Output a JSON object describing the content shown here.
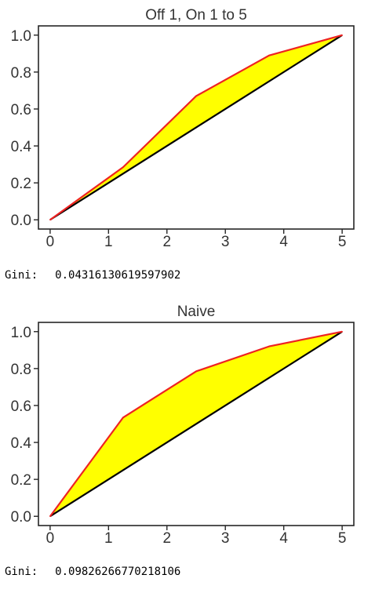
{
  "chart_data": [
    {
      "type": "area",
      "title": "Off 1, On 1 to 5",
      "xlabel": "",
      "ylabel": "",
      "xlim": [
        -0.2,
        5.2
      ],
      "ylim": [
        -0.05,
        1.05
      ],
      "xticks": [
        0,
        1,
        2,
        3,
        4,
        5
      ],
      "xtick_labels": [
        "0",
        "1",
        "2",
        "3",
        "4",
        "5"
      ],
      "yticks": [
        0.0,
        0.2,
        0.4,
        0.6,
        0.8,
        1.0
      ],
      "ytick_labels": [
        "0.0",
        "0.2",
        "0.4",
        "0.6",
        "0.8",
        "1.0"
      ],
      "grid": false,
      "series": [
        {
          "role": "lorenz",
          "x": [
            0,
            1.25,
            2.5,
            3.75,
            5
          ],
          "values": [
            0,
            0.285,
            0.67,
            0.89,
            1.0
          ]
        },
        {
          "role": "equality",
          "x": [
            0,
            5
          ],
          "values": [
            0,
            1.0
          ]
        }
      ],
      "colors": {
        "lorenz": "#ee2222",
        "equality": "#000000",
        "fill": "#ffff00"
      },
      "gini_label": "Gini:",
      "gini_value": "0.04316130619597902"
    },
    {
      "type": "area",
      "title": "Naive",
      "xlabel": "",
      "ylabel": "",
      "xlim": [
        -0.2,
        5.2
      ],
      "ylim": [
        -0.05,
        1.05
      ],
      "xticks": [
        0,
        1,
        2,
        3,
        4,
        5
      ],
      "xtick_labels": [
        "0",
        "1",
        "2",
        "3",
        "4",
        "5"
      ],
      "yticks": [
        0.0,
        0.2,
        0.4,
        0.6,
        0.8,
        1.0
      ],
      "ytick_labels": [
        "0.0",
        "0.2",
        "0.4",
        "0.6",
        "0.8",
        "1.0"
      ],
      "grid": false,
      "series": [
        {
          "role": "lorenz",
          "x": [
            0,
            1.25,
            2.5,
            3.75,
            5
          ],
          "values": [
            0,
            0.535,
            0.785,
            0.92,
            1.0
          ]
        },
        {
          "role": "equality",
          "x": [
            0,
            5
          ],
          "values": [
            0,
            1.0
          ]
        }
      ],
      "colors": {
        "lorenz": "#ee2222",
        "equality": "#000000",
        "fill": "#ffff00"
      },
      "gini_label": "Gini:",
      "gini_value": "0.09826266770218106"
    }
  ]
}
